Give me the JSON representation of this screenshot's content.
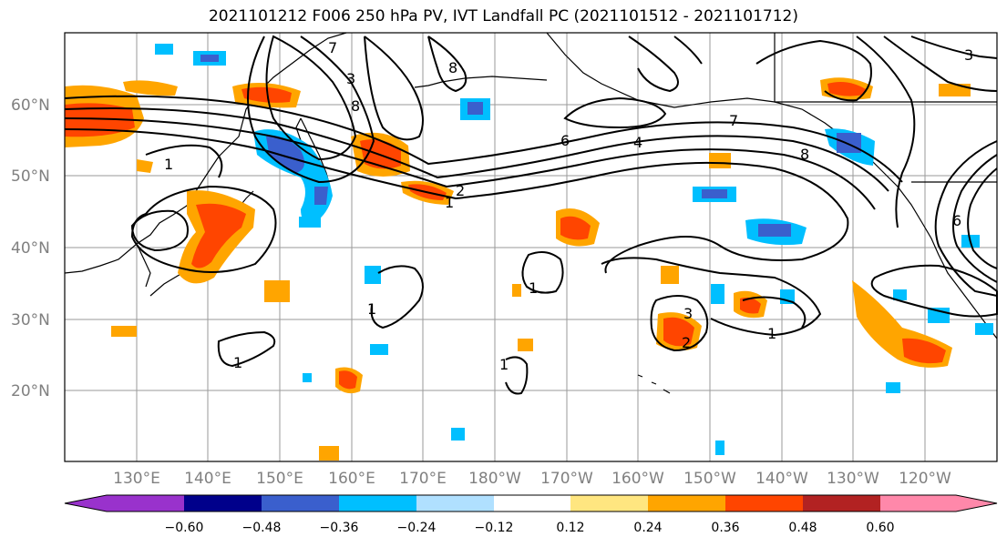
{
  "title": "2021101212 F006 250 hPa PV, IVT Landfall PC (2021101512 - 2021101712)",
  "map": {
    "lat_labels": [
      "60°N",
      "50°N",
      "40°N",
      "30°N",
      "20°N"
    ],
    "lon_labels": [
      "130°E",
      "140°E",
      "150°E",
      "160°E",
      "170°E",
      "180°W",
      "170°W",
      "160°W",
      "150°W",
      "140°W",
      "130°W",
      "120°W"
    ],
    "contour_labels": [
      "7",
      "3",
      "8",
      "8",
      "6",
      "4",
      "7",
      "8",
      "1",
      "2",
      "1",
      "1",
      "1",
      "1",
      "3",
      "2",
      "1",
      "6",
      "3",
      "1"
    ],
    "colors": {
      "positive_1": "#ffe680",
      "positive_2": "#ffa500",
      "positive_3": "#ff4500",
      "negative_1": "#b0e0ff",
      "negative_2": "#00bfff",
      "negative_3": "#3a5fcd",
      "contour": "#000000"
    }
  },
  "colorbar": {
    "ticks": [
      "−0.60",
      "−0.48",
      "−0.36",
      "−0.24",
      "−0.12",
      "0.12",
      "0.24",
      "0.36",
      "0.48",
      "0.60"
    ],
    "colors": [
      "#9932cc",
      "#00008b",
      "#3a5fcd",
      "#00bfff",
      "#b0e0ff",
      "#ffffff",
      "#ffe680",
      "#ffa500",
      "#ff4500",
      "#b22222",
      "#ff88aa"
    ]
  }
}
